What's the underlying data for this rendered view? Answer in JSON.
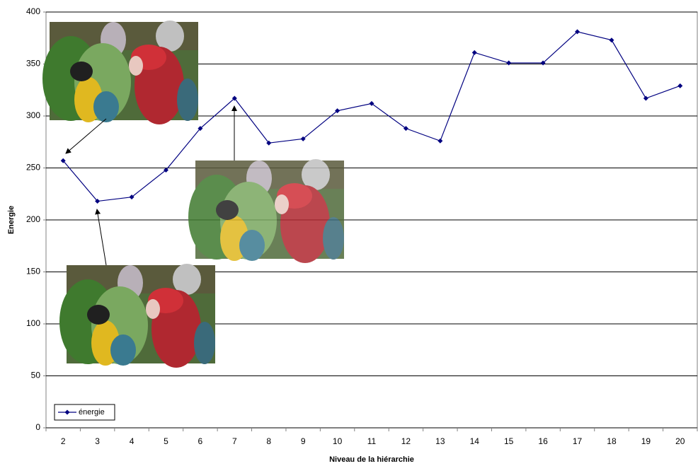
{
  "chart_data": {
    "type": "line",
    "xlabel": "Niveau de la hiérarchie",
    "ylabel": "Energie",
    "categories": [
      "2",
      "3",
      "4",
      "5",
      "6",
      "7",
      "8",
      "9",
      "10",
      "11",
      "12",
      "13",
      "14",
      "15",
      "16",
      "17",
      "18",
      "19",
      "20"
    ],
    "series": [
      {
        "name": "énergie",
        "color": "#000080",
        "values": [
          257,
          218,
          222,
          248,
          288,
          317,
          274,
          278,
          305,
          312,
          288,
          276,
          361,
          351,
          351,
          381,
          373,
          317,
          329
        ]
      }
    ],
    "ylim": [
      0,
      400
    ],
    "yticks": [
      0,
      50,
      100,
      150,
      200,
      250,
      300,
      350,
      400
    ],
    "grid": true,
    "legend": "lower left"
  }
}
